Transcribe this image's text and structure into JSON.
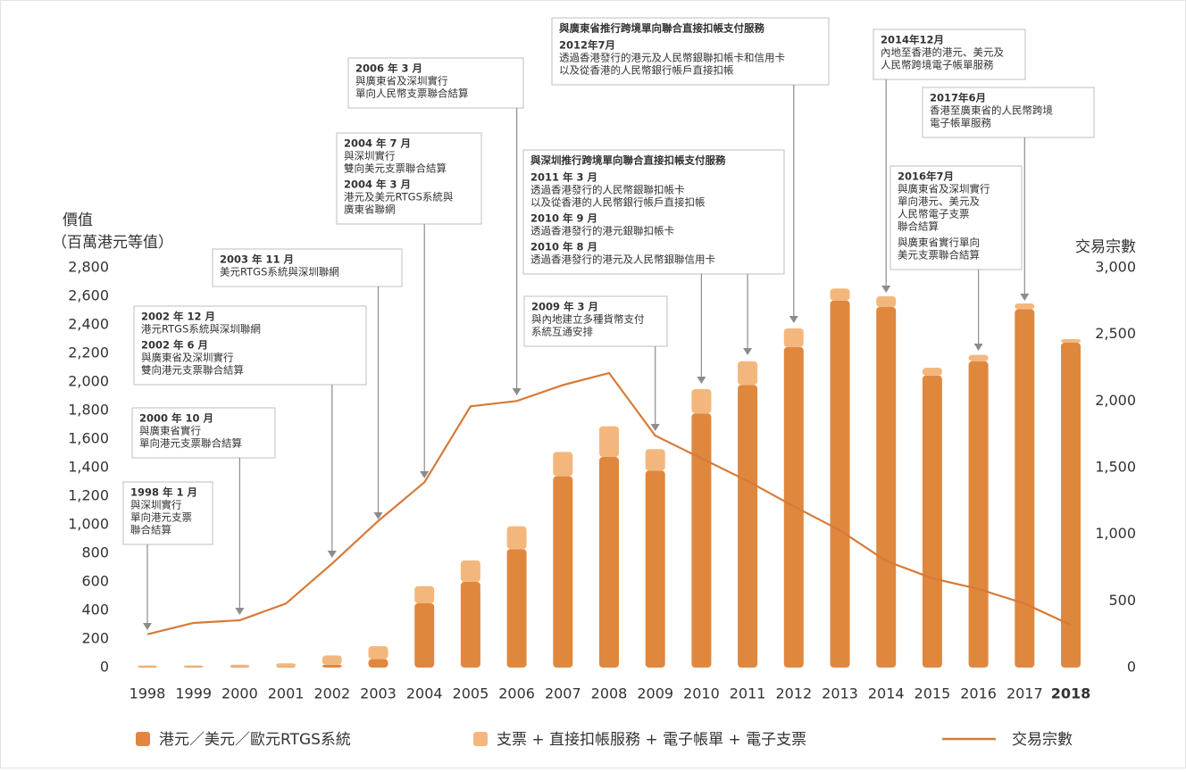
{
  "chart_data": {
    "type": "bar-line",
    "ylabel": [
      "價值",
      "（百萬港元等值）"
    ],
    "y2label": "交易宗數",
    "categories": [
      "1998",
      "1999",
      "2000",
      "2001",
      "2002",
      "2003",
      "2004",
      "2005",
      "2006",
      "2007",
      "2008",
      "2009",
      "2010",
      "2011",
      "2012",
      "2013",
      "2014",
      "2015",
      "2016",
      "2017",
      "2018"
    ],
    "series": [
      {
        "name": "港元／美元／歐元RTGS系統",
        "color": "#e0873e",
        "stack": true,
        "values": [
          5,
          5,
          5,
          5,
          20,
          60,
          450,
          600,
          830,
          1340,
          1475,
          1380,
          1780,
          1980,
          2245,
          2570,
          2525,
          2045,
          2145,
          2510,
          2275
        ]
      },
      {
        "name": "支票 + 直接扣帳服務 + 電子帳單 + 電子支票",
        "color": "#f3b77d",
        "stack": true,
        "values": [
          10,
          10,
          15,
          25,
          65,
          90,
          120,
          150,
          160,
          170,
          215,
          150,
          170,
          165,
          130,
          85,
          75,
          55,
          45,
          40,
          25
        ]
      },
      {
        "name": "交易宗數",
        "color": "#d77a38",
        "axis": "y2",
        "type": "line",
        "values": [
          250,
          335,
          355,
          480,
          780,
          1100,
          1390,
          1960,
          2000,
          2120,
          2210,
          1740,
          1570,
          1400,
          1210,
          1030,
          800,
          670,
          590,
          480,
          320
        ]
      }
    ],
    "ylim": [
      0,
      2800
    ],
    "yticks": [
      0,
      200,
      400,
      600,
      800,
      {
        "value": 1000,
        "label": "1,000"
      },
      {
        "value": 1200,
        "label": "1,200"
      },
      {
        "value": 1400,
        "label": "1,400"
      },
      {
        "value": 1600,
        "label": "1,600"
      },
      {
        "value": 1800,
        "label": "1,800"
      },
      {
        "value": 2000,
        "label": "2,000"
      },
      {
        "value": 2200,
        "label": "2,200"
      },
      {
        "value": 2400,
        "label": "2,400"
      },
      {
        "value": 2600,
        "label": "2,600"
      },
      {
        "value": 2800,
        "label": "2,800"
      }
    ],
    "y2lim": [
      0,
      3000
    ],
    "y2ticks": [
      0,
      500,
      {
        "value": 1000,
        "label": "1,000"
      },
      {
        "value": 1500,
        "label": "1,500"
      },
      {
        "value": 2000,
        "label": "2,000"
      },
      {
        "value": 2500,
        "label": "2,500"
      },
      {
        "value": 3000,
        "label": "3,000"
      }
    ],
    "annotations": [
      {
        "targets": [
          "1998"
        ],
        "entries": [
          {
            "date": "1998 年 1 月",
            "text": [
              "與深圳實行",
              "單向港元支票",
              "聯合結算"
            ]
          }
        ]
      },
      {
        "targets": [
          "2000"
        ],
        "entries": [
          {
            "date": "2000 年 10 月",
            "text": [
              "與廣東省實行",
              "單向港元支票聯合結算"
            ]
          }
        ]
      },
      {
        "targets": [
          "2002"
        ],
        "entries": [
          {
            "date": "2002 年 12 月",
            "text": [
              "港元RTGS系統與深圳聯網"
            ]
          },
          {
            "date": "2002 年 6 月",
            "text": [
              "與廣東省及深圳實行",
              "雙向港元支票聯合結算"
            ]
          }
        ]
      },
      {
        "targets": [
          "2003"
        ],
        "entries": [
          {
            "date": "2003 年 11 月",
            "text": [
              "美元RTGS系統與深圳聯網"
            ]
          }
        ]
      },
      {
        "targets": [
          "2004"
        ],
        "entries": [
          {
            "date": "2004 年 7 月",
            "text": [
              "與深圳實行",
              "雙向美元支票聯合結算"
            ]
          },
          {
            "date": "2004 年 3 月",
            "text": [
              "港元及美元RTGS系統與",
              "廣東省聯網"
            ]
          }
        ]
      },
      {
        "targets": [
          "2006"
        ],
        "entries": [
          {
            "date": "2006 年 3 月",
            "text": [
              "與廣東省及深圳實行",
              "單向人民幣支票聯合結算"
            ]
          }
        ]
      },
      {
        "targets": [
          "2009"
        ],
        "entries": [
          {
            "date": "2009 年 3 月",
            "text": [
              "與內地建立多種貨幣支付",
              "系統互通安排"
            ]
          }
        ]
      },
      {
        "targets": [
          "2010",
          "2011"
        ],
        "title": "與深圳推行跨境單向聯合直接扣帳支付服務",
        "entries": [
          {
            "date": "2011 年 3 月",
            "text": [
              "透過香港發行的人民幣銀聯扣帳卡",
              "以及從香港的人民幣銀行帳戶直接扣帳"
            ]
          },
          {
            "date": "2010 年 9 月",
            "text": [
              "透過香港發行的港元銀聯扣帳卡"
            ]
          },
          {
            "date": "2010 年 8 月",
            "text": [
              "透過香港發行的港元及人民幣銀聯信用卡"
            ]
          }
        ]
      },
      {
        "targets": [
          "2012"
        ],
        "title": "與廣東省推行跨境單向聯合直接扣帳支付服務",
        "entries": [
          {
            "date": "2012年7月",
            "text": [
              "透過香港發行的港元及人民幣銀聯扣帳卡和信用卡",
              "以及從香港的人民幣銀行帳戶直接扣帳"
            ]
          }
        ]
      },
      {
        "targets": [
          "2014"
        ],
        "entries": [
          {
            "date": "2014年12月",
            "text": [
              "內地至香港的港元、美元及",
              "人民幣跨境電子帳單服務"
            ]
          }
        ]
      },
      {
        "targets": [
          "2017"
        ],
        "entries": [
          {
            "date": "2017年6月",
            "text": [
              "香港至廣東省的人民幣跨境",
              "電子帳單服務"
            ]
          }
        ]
      },
      {
        "targets": [
          "2016"
        ],
        "entries": [
          {
            "date": "2016年7月",
            "text": [
              "與廣東省及深圳實行",
              "單向港元、美元及",
              "人民幣電子支票",
              "聯合結算"
            ]
          },
          {
            "text": [
              "與廣東省實行單向",
              "美元支票聯合結算"
            ]
          }
        ]
      }
    ]
  }
}
